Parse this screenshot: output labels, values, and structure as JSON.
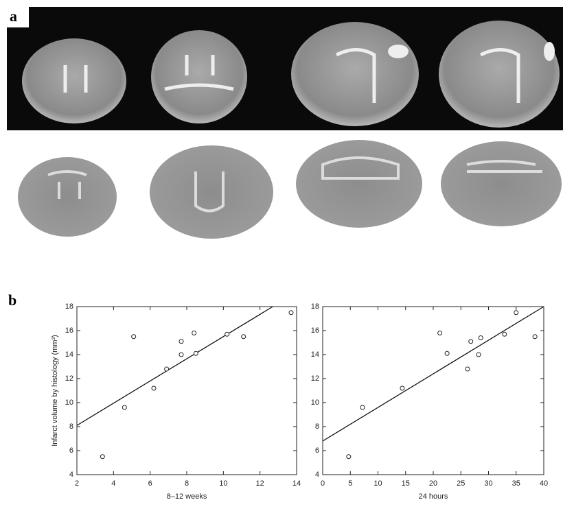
{
  "panel_labels": [
    "a",
    "b"
  ],
  "chart_data": [
    {
      "type": "scatter",
      "xlabel": "8–12 weeks",
      "ylabel": "Infarct volume by histology (mm³)",
      "x": [
        3.4,
        4.6,
        5.1,
        6.2,
        6.9,
        7.7,
        7.7,
        8.4,
        8.5,
        10.2,
        11.1,
        13.7
      ],
      "values": [
        5.5,
        9.6,
        15.5,
        11.2,
        12.8,
        15.1,
        14.0,
        15.8,
        14.1,
        15.7,
        15.5,
        17.5
      ],
      "fit": {
        "x": [
          2,
          12.7
        ],
        "y": [
          8.1,
          18
        ]
      },
      "xlim": [
        2,
        14
      ],
      "xticks": [
        2,
        4,
        6,
        8,
        10,
        12,
        14
      ],
      "ylim": [
        4,
        18
      ],
      "yticks": [
        4,
        6,
        8,
        10,
        12,
        14,
        16,
        18
      ]
    },
    {
      "type": "scatter",
      "xlabel": "24 hours",
      "x": [
        4.7,
        7.2,
        14.4,
        21.2,
        22.5,
        26.2,
        26.8,
        28.2,
        28.6,
        32.9,
        35.0,
        38.4
      ],
      "values": [
        5.5,
        9.6,
        11.2,
        15.8,
        14.1,
        12.8,
        15.1,
        14.0,
        15.4,
        15.7,
        17.5,
        15.5
      ],
      "fit": {
        "x": [
          0,
          40
        ],
        "y": [
          6.8,
          18
        ]
      },
      "xlim": [
        0,
        40
      ],
      "xticks": [
        0,
        5,
        10,
        15,
        20,
        25,
        30,
        35,
        40
      ],
      "ylim": [
        4,
        18
      ],
      "yticks": [
        4,
        6,
        8,
        10,
        12,
        14,
        16,
        18
      ]
    }
  ]
}
